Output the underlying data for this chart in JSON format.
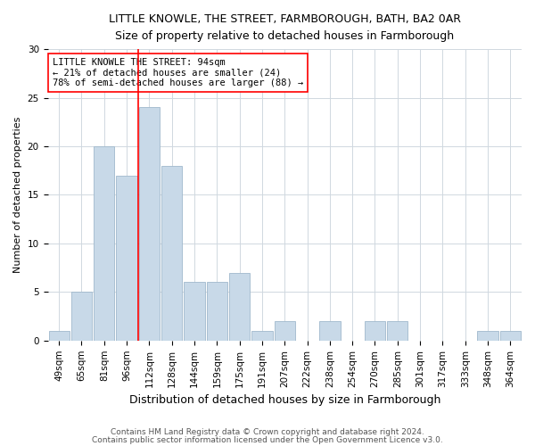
{
  "title1": "LITTLE KNOWLE, THE STREET, FARMBOROUGH, BATH, BA2 0AR",
  "title2": "Size of property relative to detached houses in Farmborough",
  "xlabel": "Distribution of detached houses by size in Farmborough",
  "ylabel": "Number of detached properties",
  "categories": [
    "49sqm",
    "65sqm",
    "81sqm",
    "96sqm",
    "112sqm",
    "128sqm",
    "144sqm",
    "159sqm",
    "175sqm",
    "191sqm",
    "207sqm",
    "222sqm",
    "238sqm",
    "254sqm",
    "270sqm",
    "285sqm",
    "301sqm",
    "317sqm",
    "333sqm",
    "348sqm",
    "364sqm"
  ],
  "values": [
    1,
    5,
    20,
    17,
    24,
    18,
    6,
    6,
    7,
    1,
    2,
    0,
    2,
    0,
    2,
    2,
    0,
    0,
    0,
    1,
    1
  ],
  "bar_color": "#c8d9e8",
  "bar_edge_color": "#a0b8cc",
  "grid_color": "#d0d8e0",
  "property_line_x": 3.5,
  "annotation_line1": "LITTLE KNOWLE THE STREET: 94sqm",
  "annotation_line2": "← 21% of detached houses are smaller (24)",
  "annotation_line3": "78% of semi-detached houses are larger (88) →",
  "footer1": "Contains HM Land Registry data © Crown copyright and database right 2024.",
  "footer2": "Contains public sector information licensed under the Open Government Licence v3.0.",
  "ylim": [
    0,
    30
  ],
  "yticks": [
    0,
    5,
    10,
    15,
    20,
    25,
    30
  ],
  "title1_fontsize": 9,
  "title2_fontsize": 9,
  "ylabel_fontsize": 8,
  "xlabel_fontsize": 9,
  "tick_fontsize": 7.5,
  "annotation_fontsize": 7.5,
  "footer_fontsize": 6.5
}
